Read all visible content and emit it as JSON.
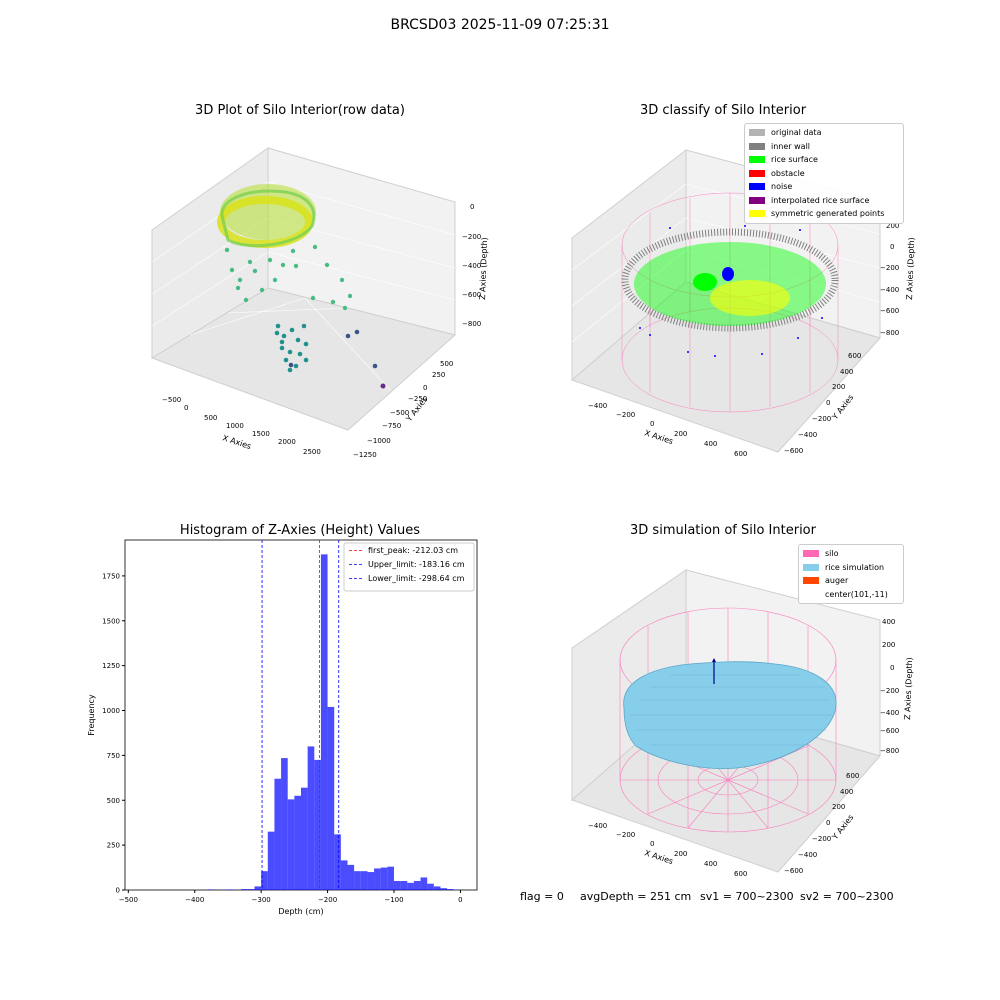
{
  "figure": {
    "suptitle": "BRCSD03 2025-11-09 07:25:31"
  },
  "panels": {
    "raw": {
      "title": "3D Plot of Silo Interior(row data)",
      "xlabel": "X Axies",
      "ylabel": "Y Axies",
      "zlabel": "Z Axies (Depth)",
      "xticks": [
        "−500",
        "0",
        "500",
        "1000",
        "1500",
        "2000",
        "2500"
      ],
      "yticks": [
        "500",
        "250",
        "0",
        "−250",
        "−500",
        "−750",
        "−1000",
        "−1250"
      ],
      "zticks": [
        "0",
        "−200",
        "−400",
        "−600",
        "−800"
      ]
    },
    "classify": {
      "title": "3D classify of Silo Interior",
      "xlabel": "X Axies",
      "ylabel": "Y Axies",
      "zlabel": "Z Axies (Depth)",
      "xticks": [
        "−400",
        "−200",
        "0",
        "200",
        "400",
        "600"
      ],
      "yticks": [
        "600",
        "400",
        "200",
        "0",
        "−200",
        "−400",
        "−600"
      ],
      "zticks": [
        "200",
        "0",
        "−200",
        "−400",
        "−600",
        "−800"
      ],
      "legend": [
        {
          "label": "original data",
          "color": "#b3b3b3"
        },
        {
          "label": "inner wall",
          "color": "#808080"
        },
        {
          "label": "rice surface",
          "color": "#00ff00"
        },
        {
          "label": "obstacle",
          "color": "#ff0000"
        },
        {
          "label": "noise",
          "color": "#0000ff"
        },
        {
          "label": "interpolated rice surface",
          "color": "#800080"
        },
        {
          "label": "symmetric generated points",
          "color": "#ffff00"
        }
      ]
    },
    "simulation": {
      "title": "3D simulation of Silo Interior",
      "xlabel": "X Axies",
      "ylabel": "Y Axies",
      "zlabel": "Z Axies (Depth)",
      "xticks": [
        "−400",
        "−200",
        "0",
        "200",
        "400",
        "600"
      ],
      "yticks": [
        "600",
        "400",
        "200",
        "0",
        "−200",
        "−400",
        "−600"
      ],
      "zticks": [
        "400",
        "200",
        "0",
        "−200",
        "−400",
        "−600",
        "−800"
      ],
      "legend": [
        {
          "label": "silo",
          "color": "#ff69b4"
        },
        {
          "label": "rice simulation",
          "color": "#87ceeb"
        },
        {
          "label": "auger",
          "color": "#ff4500"
        },
        {
          "label": "center(101,-11)",
          "color": ""
        }
      ]
    }
  },
  "status": {
    "flag": "flag = 0",
    "avg_depth": "avgDepth = 251 cm",
    "sv1": "sv1 = 700~2300",
    "sv2": "sv2 = 700~2300"
  },
  "chart_data": {
    "type": "bar",
    "title": "Histogram of Z-Axies (Height) Values",
    "xlabel": "Depth (cm)",
    "ylabel": "Frequency",
    "xlim": [
      -505,
      25
    ],
    "ylim": [
      0,
      1950
    ],
    "xticks": [
      -500,
      -400,
      -300,
      -200,
      -100,
      0
    ],
    "yticks": [
      0,
      250,
      500,
      750,
      1000,
      1250,
      1500,
      1750
    ],
    "bin_width": 10,
    "bins": [
      [
        -380,
        3
      ],
      [
        -360,
        2
      ],
      [
        -350,
        3
      ],
      [
        -330,
        5
      ],
      [
        -320,
        5
      ],
      [
        -310,
        20
      ],
      [
        -300,
        105
      ],
      [
        -290,
        325
      ],
      [
        -280,
        620
      ],
      [
        -270,
        735
      ],
      [
        -260,
        505
      ],
      [
        -250,
        525
      ],
      [
        -240,
        570
      ],
      [
        -230,
        800
      ],
      [
        -220,
        725
      ],
      [
        -210,
        1870
      ],
      [
        -200,
        1020
      ],
      [
        -190,
        310
      ],
      [
        -180,
        165
      ],
      [
        -170,
        140
      ],
      [
        -160,
        105
      ],
      [
        -150,
        105
      ],
      [
        -140,
        100
      ],
      [
        -130,
        120
      ],
      [
        -120,
        125
      ],
      [
        -110,
        130
      ],
      [
        -100,
        50
      ],
      [
        -90,
        50
      ],
      [
        -80,
        40
      ],
      [
        -70,
        50
      ],
      [
        -60,
        70
      ],
      [
        -50,
        35
      ],
      [
        -40,
        20
      ],
      [
        -30,
        10
      ],
      [
        -20,
        5
      ],
      [
        -10,
        2
      ]
    ],
    "bar_color": "#0000ff",
    "vlines": [
      {
        "label": "first_peak: -212.03 cm",
        "x": -212.03,
        "color": "#ff0000"
      },
      {
        "label": "Upper_limit: -183.16 cm",
        "x": -183.16,
        "color": "#0000ff"
      },
      {
        "label": "Lower_limit: -298.64 cm",
        "x": -298.64,
        "color": "#0000ff"
      }
    ],
    "legend_position": "top-right",
    "grid": false
  }
}
